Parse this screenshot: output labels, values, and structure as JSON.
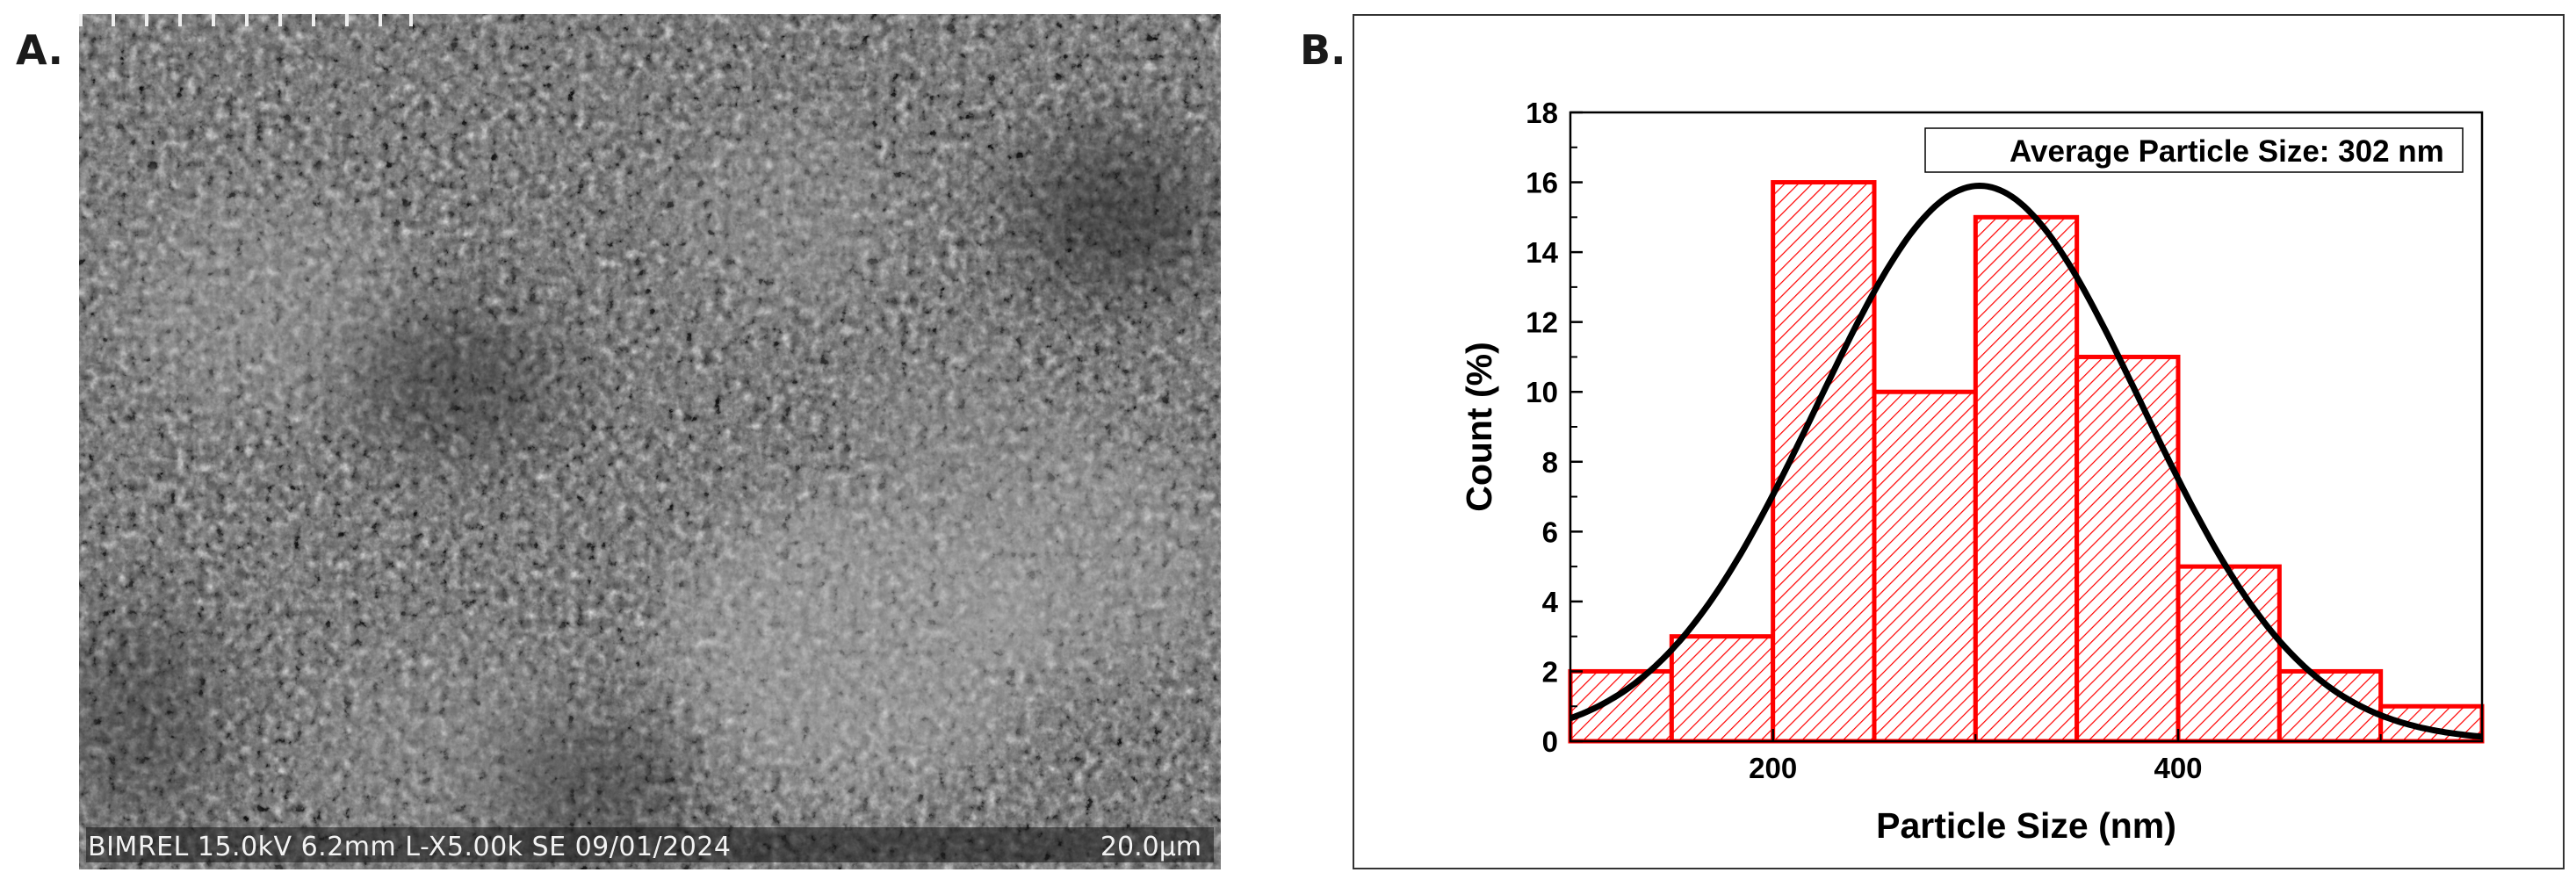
{
  "panels": {
    "a_label": "A.",
    "b_label": "B."
  },
  "sem": {
    "info_text": "BIMREL 15.0kV 6.2mm L-X5.00k SE 09/01/2024",
    "scale_text": "20.0µm"
  },
  "chart_data": {
    "type": "bar",
    "title": "",
    "xlabel": "Particle Size (nm)",
    "ylabel": "Count (%)",
    "annotation": "Average Particle Size: 302 nm",
    "xlim": [
      100,
      550
    ],
    "ylim": [
      0,
      18
    ],
    "xticks": [
      200,
      400
    ],
    "yticks": [
      0,
      2,
      4,
      6,
      8,
      10,
      12,
      14,
      16,
      18
    ],
    "bins": [
      {
        "start": 100,
        "end": 150,
        "count": 2
      },
      {
        "start": 150,
        "end": 200,
        "count": 3
      },
      {
        "start": 200,
        "end": 250,
        "count": 16
      },
      {
        "start": 250,
        "end": 300,
        "count": 10
      },
      {
        "start": 300,
        "end": 350,
        "count": 15
      },
      {
        "start": 350,
        "end": 400,
        "count": 11
      },
      {
        "start": 400,
        "end": 450,
        "count": 5
      },
      {
        "start": 450,
        "end": 500,
        "count": 2
      },
      {
        "start": 500,
        "end": 550,
        "count": 1
      }
    ],
    "fit": {
      "type": "gaussian",
      "mean": 302,
      "sigma": 80,
      "peak": 15.9
    },
    "colors": {
      "bar_edge": "#ff0000",
      "hatch": "#ff0000",
      "fit": "#000000",
      "axis": "#000000"
    }
  }
}
